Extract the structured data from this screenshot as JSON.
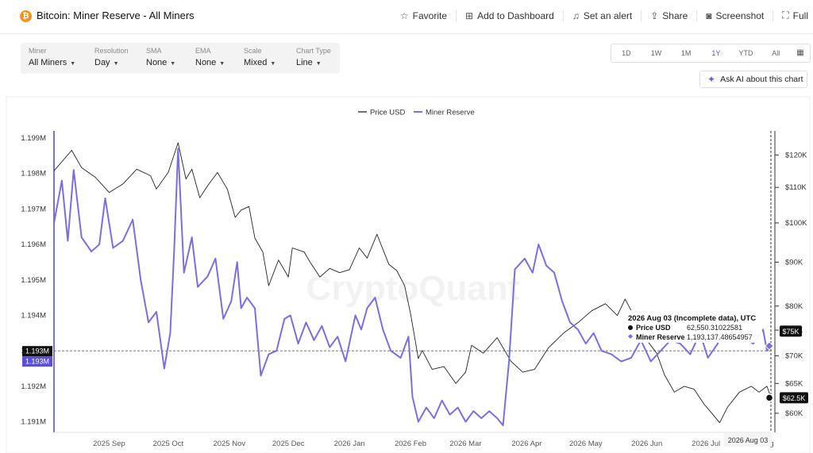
{
  "header": {
    "title": "Bitcoin: Miner Reserve - All Miners",
    "coin_symbol": "₿",
    "actions": [
      {
        "label": "Favorite",
        "icon": "star-icon"
      },
      {
        "label": "Add to Dashboard",
        "icon": "dashboard-add-icon"
      },
      {
        "label": "Set an alert",
        "icon": "bell-icon"
      },
      {
        "label": "Share",
        "icon": "share-icon"
      },
      {
        "label": "Screenshot",
        "icon": "camera-icon"
      },
      {
        "label": "Full",
        "icon": "fullscreen-icon"
      }
    ]
  },
  "filters": [
    {
      "label": "Miner",
      "value": "All Miners"
    },
    {
      "label": "Resolution",
      "value": "Day"
    },
    {
      "label": "SMA",
      "value": "None"
    },
    {
      "label": "EMA",
      "value": "None"
    },
    {
      "label": "Scale",
      "value": "Mixed"
    },
    {
      "label": "Chart Type",
      "value": "Line"
    }
  ],
  "ranges": [
    "1D",
    "1W",
    "1M",
    "1Y",
    "YTD",
    "All"
  ],
  "active_range": "1Y",
  "ask_ai": "Ask AI about this chart",
  "colors": {
    "price": "#222222",
    "reserve": "#7b6fdc",
    "accent": "#5a53d6",
    "coin": "#f7931a"
  },
  "chart_data": {
    "type": "line",
    "watermark": "CryptoQuant",
    "legend": [
      {
        "name": "Price USD",
        "color": "#222222"
      },
      {
        "name": "Miner Reserve",
        "color": "#7b6fdc"
      }
    ],
    "legend_position": "top-center",
    "x_ticks": [
      "2025 Sep",
      "2025 Oct",
      "2025 Nov",
      "2025 Dec",
      "2026 Jan",
      "2026 Feb",
      "2026 Mar",
      "2026 Apr",
      "2026 May",
      "2026 Jun",
      "2026 Jul",
      "Aug"
    ],
    "x_range": [
      "2025 Aug 04",
      "2026 Aug 03"
    ],
    "left_axis": {
      "ticks": [
        "1.191M",
        "1.192M",
        "1.193M",
        "1.194M",
        "1.195M",
        "1.196M",
        "1.197M",
        "1.198M",
        "1.199M"
      ],
      "min": 1190700,
      "max": 1199200
    },
    "right_axis": {
      "ticks": [
        "$60K",
        "$65K",
        "$70K",
        "$75K",
        "$80K",
        "$90K",
        "$100K",
        "$110K",
        "$120K"
      ],
      "scale": "log",
      "min": 57000,
      "max": 128000
    },
    "crosshair": {
      "y_label": "1.193M",
      "reserve_label": "1.193M",
      "price_tag": "$62.5K",
      "reserve_tag": "$75K",
      "x_label": "2026 Aug 03"
    },
    "tooltip": {
      "title": "2026 Aug 03 (Incomplete data), UTC",
      "rows": [
        {
          "name": "Price USD",
          "value": "62,550.31022581"
        },
        {
          "name": "Miner Reserve",
          "value": "1,193,137.48654957"
        }
      ]
    },
    "series": [
      {
        "name": "Price USD",
        "axis": "right",
        "color": "#222222",
        "points": [
          [
            "2025-08-04",
            115000
          ],
          [
            "2025-08-13",
            121500
          ],
          [
            "2025-08-18",
            116000
          ],
          [
            "2025-08-25",
            113000
          ],
          [
            "2025-09-01",
            108500
          ],
          [
            "2025-09-08",
            111000
          ],
          [
            "2025-09-15",
            115500
          ],
          [
            "2025-09-22",
            113500
          ],
          [
            "2025-09-25",
            109500
          ],
          [
            "2025-10-01",
            114500
          ],
          [
            "2025-10-06",
            124000
          ],
          [
            "2025-10-10",
            112500
          ],
          [
            "2025-10-13",
            115500
          ],
          [
            "2025-10-17",
            107000
          ],
          [
            "2025-10-21",
            110500
          ],
          [
            "2025-10-26",
            114500
          ],
          [
            "2025-10-31",
            109500
          ],
          [
            "2025-11-04",
            101500
          ],
          [
            "2025-11-07",
            103500
          ],
          [
            "2025-11-11",
            104500
          ],
          [
            "2025-11-14",
            96000
          ],
          [
            "2025-11-18",
            92500
          ],
          [
            "2025-11-21",
            84500
          ],
          [
            "2025-11-26",
            90500
          ],
          [
            "2025-12-01",
            86500
          ],
          [
            "2025-12-03",
            93500
          ],
          [
            "2025-12-09",
            92500
          ],
          [
            "2025-12-12",
            90000
          ],
          [
            "2025-12-17",
            86500
          ],
          [
            "2025-12-22",
            88500
          ],
          [
            "2025-12-27",
            87500
          ],
          [
            "2026-01-01",
            88200
          ],
          [
            "2026-01-06",
            93500
          ],
          [
            "2026-01-10",
            91000
          ],
          [
            "2026-01-15",
            97000
          ],
          [
            "2026-01-21",
            89500
          ],
          [
            "2026-01-25",
            88000
          ],
          [
            "2026-01-29",
            84500
          ],
          [
            "2026-02-01",
            78500
          ],
          [
            "2026-02-05",
            69500
          ],
          [
            "2026-02-07",
            71000
          ],
          [
            "2026-02-12",
            67500
          ],
          [
            "2026-02-18",
            68000
          ],
          [
            "2026-02-24",
            65000
          ],
          [
            "2026-03-01",
            67000
          ],
          [
            "2026-03-04",
            72000
          ],
          [
            "2026-03-10",
            70500
          ],
          [
            "2026-03-17",
            73500
          ],
          [
            "2026-03-24",
            69000
          ],
          [
            "2026-03-30",
            67000
          ],
          [
            "2026-04-05",
            67500
          ],
          [
            "2026-04-12",
            71500
          ],
          [
            "2026-04-20",
            74500
          ],
          [
            "2026-04-27",
            76500
          ],
          [
            "2026-05-04",
            79000
          ],
          [
            "2026-05-11",
            80500
          ],
          [
            "2026-05-17",
            78000
          ],
          [
            "2026-05-21",
            81500
          ],
          [
            "2026-05-26",
            77500
          ],
          [
            "2026-06-01",
            73000
          ],
          [
            "2026-06-06",
            70500
          ],
          [
            "2026-06-10",
            66500
          ],
          [
            "2026-06-15",
            63500
          ],
          [
            "2026-06-20",
            64500
          ],
          [
            "2026-06-25",
            64000
          ],
          [
            "2026-06-30",
            61500
          ],
          [
            "2026-07-04",
            60000
          ],
          [
            "2026-07-08",
            58500
          ],
          [
            "2026-07-12",
            61000
          ],
          [
            "2026-07-18",
            63500
          ],
          [
            "2026-07-24",
            64500
          ],
          [
            "2026-07-28",
            63500
          ],
          [
            "2026-08-01",
            64500
          ],
          [
            "2026-08-03",
            62550
          ]
        ]
      },
      {
        "name": "Miner Reserve",
        "axis": "left",
        "color": "#7b6fdc",
        "points": [
          [
            "2025-08-04",
            1196600
          ],
          [
            "2025-08-08",
            1197800
          ],
          [
            "2025-08-11",
            1196100
          ],
          [
            "2025-08-14",
            1198100
          ],
          [
            "2025-08-18",
            1196200
          ],
          [
            "2025-08-23",
            1195800
          ],
          [
            "2025-08-27",
            1196000
          ],
          [
            "2025-08-30",
            1197300
          ],
          [
            "2025-09-03",
            1195900
          ],
          [
            "2025-09-08",
            1196100
          ],
          [
            "2025-09-13",
            1196700
          ],
          [
            "2025-09-17",
            1195000
          ],
          [
            "2025-09-21",
            1193800
          ],
          [
            "2025-09-25",
            1194100
          ],
          [
            "2025-09-29",
            1192500
          ],
          [
            "2025-10-02",
            1193500
          ],
          [
            "2025-10-04",
            1195800
          ],
          [
            "2025-10-06",
            1198700
          ],
          [
            "2025-10-09",
            1195200
          ],
          [
            "2025-10-13",
            1196200
          ],
          [
            "2025-10-16",
            1194800
          ],
          [
            "2025-10-21",
            1195100
          ],
          [
            "2025-10-25",
            1195600
          ],
          [
            "2025-10-29",
            1193900
          ],
          [
            "2025-11-02",
            1194400
          ],
          [
            "2025-11-05",
            1195500
          ],
          [
            "2025-11-07",
            1194200
          ],
          [
            "2025-11-10",
            1194500
          ],
          [
            "2025-11-14",
            1194200
          ],
          [
            "2025-11-17",
            1192300
          ],
          [
            "2025-11-21",
            1192900
          ],
          [
            "2025-11-25",
            1193000
          ],
          [
            "2025-11-29",
            1193900
          ],
          [
            "2025-12-02",
            1194000
          ],
          [
            "2025-12-06",
            1193200
          ],
          [
            "2025-12-10",
            1193800
          ],
          [
            "2025-12-14",
            1193300
          ],
          [
            "2025-12-18",
            1193700
          ],
          [
            "2025-12-22",
            1193100
          ],
          [
            "2025-12-26",
            1193400
          ],
          [
            "2025-12-30",
            1192700
          ],
          [
            "2026-01-04",
            1194000
          ],
          [
            "2026-01-07",
            1193600
          ],
          [
            "2026-01-10",
            1194200
          ],
          [
            "2026-01-14",
            1194500
          ],
          [
            "2026-01-18",
            1193600
          ],
          [
            "2026-01-22",
            1193000
          ],
          [
            "2026-01-27",
            1192800
          ],
          [
            "2026-01-31",
            1193400
          ],
          [
            "2026-02-02",
            1191700
          ],
          [
            "2026-02-05",
            1191000
          ],
          [
            "2026-02-09",
            1191400
          ],
          [
            "2026-02-13",
            1191100
          ],
          [
            "2026-02-17",
            1191600
          ],
          [
            "2026-02-21",
            1191200
          ],
          [
            "2026-02-25",
            1191400
          ],
          [
            "2026-03-01",
            1191000
          ],
          [
            "2026-03-05",
            1191300
          ],
          [
            "2026-03-09",
            1191100
          ],
          [
            "2026-03-13",
            1191300
          ],
          [
            "2026-03-17",
            1191100
          ],
          [
            "2026-03-20",
            1190900
          ],
          [
            "2026-03-23",
            1192700
          ],
          [
            "2026-03-26",
            1195300
          ],
          [
            "2026-03-31",
            1195600
          ],
          [
            "2026-04-04",
            1195200
          ],
          [
            "2026-04-07",
            1196000
          ],
          [
            "2026-04-11",
            1195400
          ],
          [
            "2026-04-15",
            1195200
          ],
          [
            "2026-04-19",
            1194400
          ],
          [
            "2026-04-23",
            1193800
          ],
          [
            "2026-04-27",
            1193600
          ],
          [
            "2026-05-01",
            1193200
          ],
          [
            "2026-05-05",
            1193500
          ],
          [
            "2026-05-09",
            1193000
          ],
          [
            "2026-05-14",
            1192900
          ],
          [
            "2026-05-19",
            1192700
          ],
          [
            "2026-05-24",
            1192800
          ],
          [
            "2026-05-29",
            1193300
          ],
          [
            "2026-06-03",
            1192700
          ],
          [
            "2026-06-08",
            1193000
          ],
          [
            "2026-06-13",
            1193300
          ],
          [
            "2026-06-18",
            1193200
          ],
          [
            "2026-06-23",
            1192900
          ],
          [
            "2026-06-28",
            1193500
          ],
          [
            "2026-07-02",
            1192800
          ],
          [
            "2026-07-07",
            1193200
          ],
          [
            "2026-07-11",
            1194100
          ],
          [
            "2026-07-15",
            1193300
          ],
          [
            "2026-07-20",
            1193400
          ],
          [
            "2026-07-25",
            1193200
          ],
          [
            "2026-07-30",
            1193600
          ],
          [
            "2026-08-01",
            1193000
          ],
          [
            "2026-08-03",
            1193137
          ]
        ]
      }
    ]
  }
}
